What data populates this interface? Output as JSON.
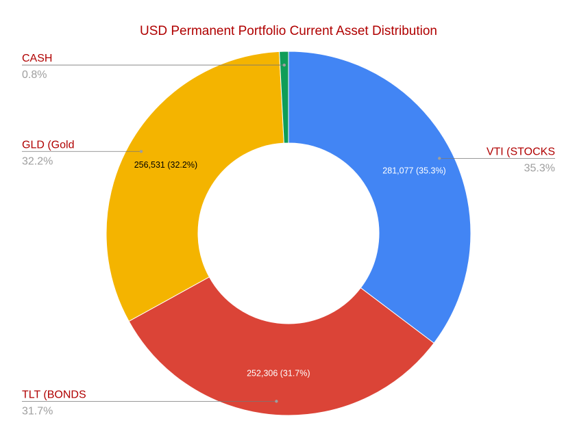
{
  "chart_data": {
    "type": "pie",
    "style": "donut",
    "title": "USD Permanent Portfolio Current Asset Distribution",
    "slices": [
      {
        "label": "VTI (STOCKS",
        "value": 281077,
        "percent_label": "35.3%",
        "data_label": "281,077 (35.3%)",
        "color": "#4285f4",
        "label_color": "#ffffff"
      },
      {
        "label": "TLT (BONDS",
        "value": 252306,
        "percent_label": "31.7%",
        "data_label": "252,306 (31.7%)",
        "color": "#db4437",
        "label_color": "#ffffff"
      },
      {
        "label": "GLD (Gold",
        "value": 256531,
        "percent_label": "32.2%",
        "data_label": "256,531 (32.2%)",
        "color": "#f4b400",
        "label_color": "#000000"
      },
      {
        "label": "CASH",
        "value": 6400,
        "percent_label": "0.8%",
        "data_label": "",
        "color": "#0f9d58",
        "label_color": "#ffffff"
      }
    ],
    "legend": "callout-labels",
    "label_color": "#b00000",
    "percent_color": "#9e9e9e"
  }
}
